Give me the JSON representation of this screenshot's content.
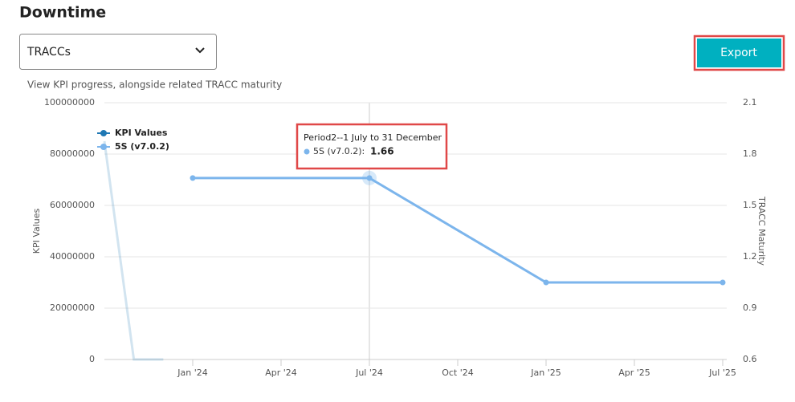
{
  "header": {
    "title": "Downtime"
  },
  "dropdown": {
    "value": "TRACCs"
  },
  "export_button": {
    "label": "Export"
  },
  "subtitle": "View KPI progress, alongside related TRACC maturity",
  "tooltip": {
    "title": "Period2--1 July to 31 December",
    "label": "5S (v7.0.2):"
  },
  "chart_data": {
    "type": "line",
    "y_label": "KPI Values",
    "y2_label": "TRACC Maturity",
    "xticks": [
      "Jan '24",
      "Apr '24",
      "Jul '24",
      "Oct '24",
      "Jan '25",
      "Apr '25",
      "Jul '25"
    ],
    "ylim": [
      0,
      100000000
    ],
    "yticks": [
      0,
      20000000,
      40000000,
      60000000,
      80000000,
      100000000
    ],
    "y2lim": [
      0.6,
      2.1
    ],
    "y2ticks": [
      0.6,
      0.9,
      1.2,
      1.5,
      1.8,
      2.1
    ],
    "grid": true,
    "legend": "top-left",
    "series": [
      {
        "name": "KPI Values",
        "color": "#1f78b4",
        "x": [
          "Oct '23",
          "Nov '23",
          "Dec '23"
        ],
        "values": [
          85000000,
          0,
          0
        ]
      },
      {
        "name": "5S (v7.0.2)",
        "color": "#7cb5ec",
        "axis": "y2",
        "x": [
          "Jan '24",
          "Jul '24",
          "Jan '25",
          "Jul '25"
        ],
        "values": [
          1.66,
          1.66,
          1.05,
          1.05
        ]
      }
    ]
  }
}
